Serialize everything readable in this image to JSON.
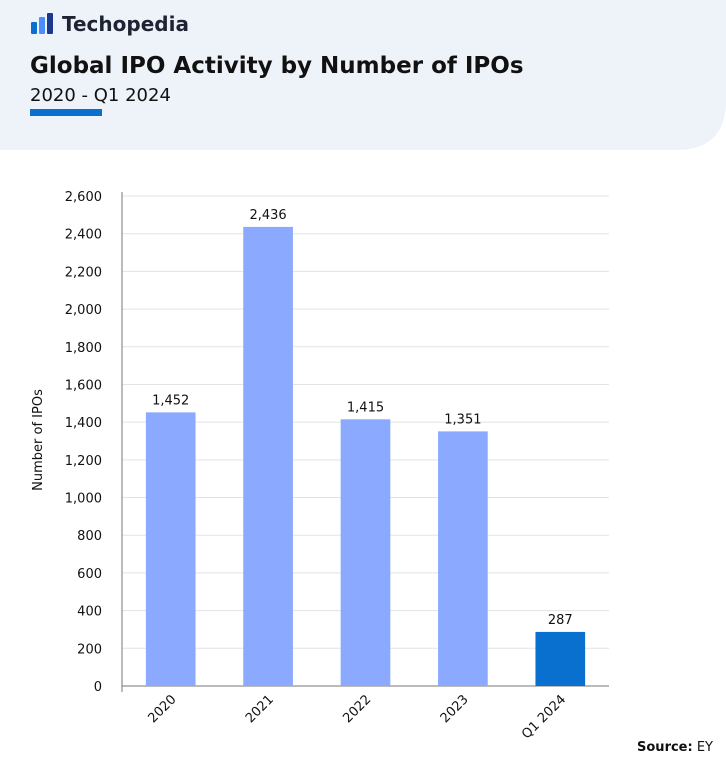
{
  "brand": "Techopedia",
  "chart_data": {
    "type": "bar",
    "title": "Global IPO Activity by Number of IPOs",
    "subtitle": "2020 - Q1 2024",
    "y_label": "Number of IPOs",
    "categories": [
      "2020",
      "2021",
      "2022",
      "2023",
      "Q1 2024"
    ],
    "values": [
      1452,
      2436,
      1415,
      1351,
      287
    ],
    "value_labels": [
      "1,452",
      "2,436",
      "1,415",
      "1,351",
      "287"
    ],
    "colors": [
      "#8aa9ff",
      "#8aa9ff",
      "#8aa9ff",
      "#8aa9ff",
      "#0a70cf"
    ],
    "ylim": [
      0,
      2600
    ],
    "yticks": [
      0,
      200,
      400,
      600,
      800,
      {
        "value": 1000,
        "label": "1,000"
      },
      {
        "value": 1200,
        "label": "1,200"
      },
      {
        "value": 1400,
        "label": "1,400"
      },
      {
        "value": 1600,
        "label": "1,600"
      },
      {
        "value": 1800,
        "label": "1,800"
      },
      {
        "value": 2000,
        "label": "2,000"
      },
      {
        "value": 2200,
        "label": "2,200"
      },
      {
        "value": 2400,
        "label": "2,400"
      },
      {
        "value": 2600,
        "label": "2,600"
      }
    ],
    "grid": true
  },
  "source": {
    "label": "Source:",
    "text": "EY"
  }
}
